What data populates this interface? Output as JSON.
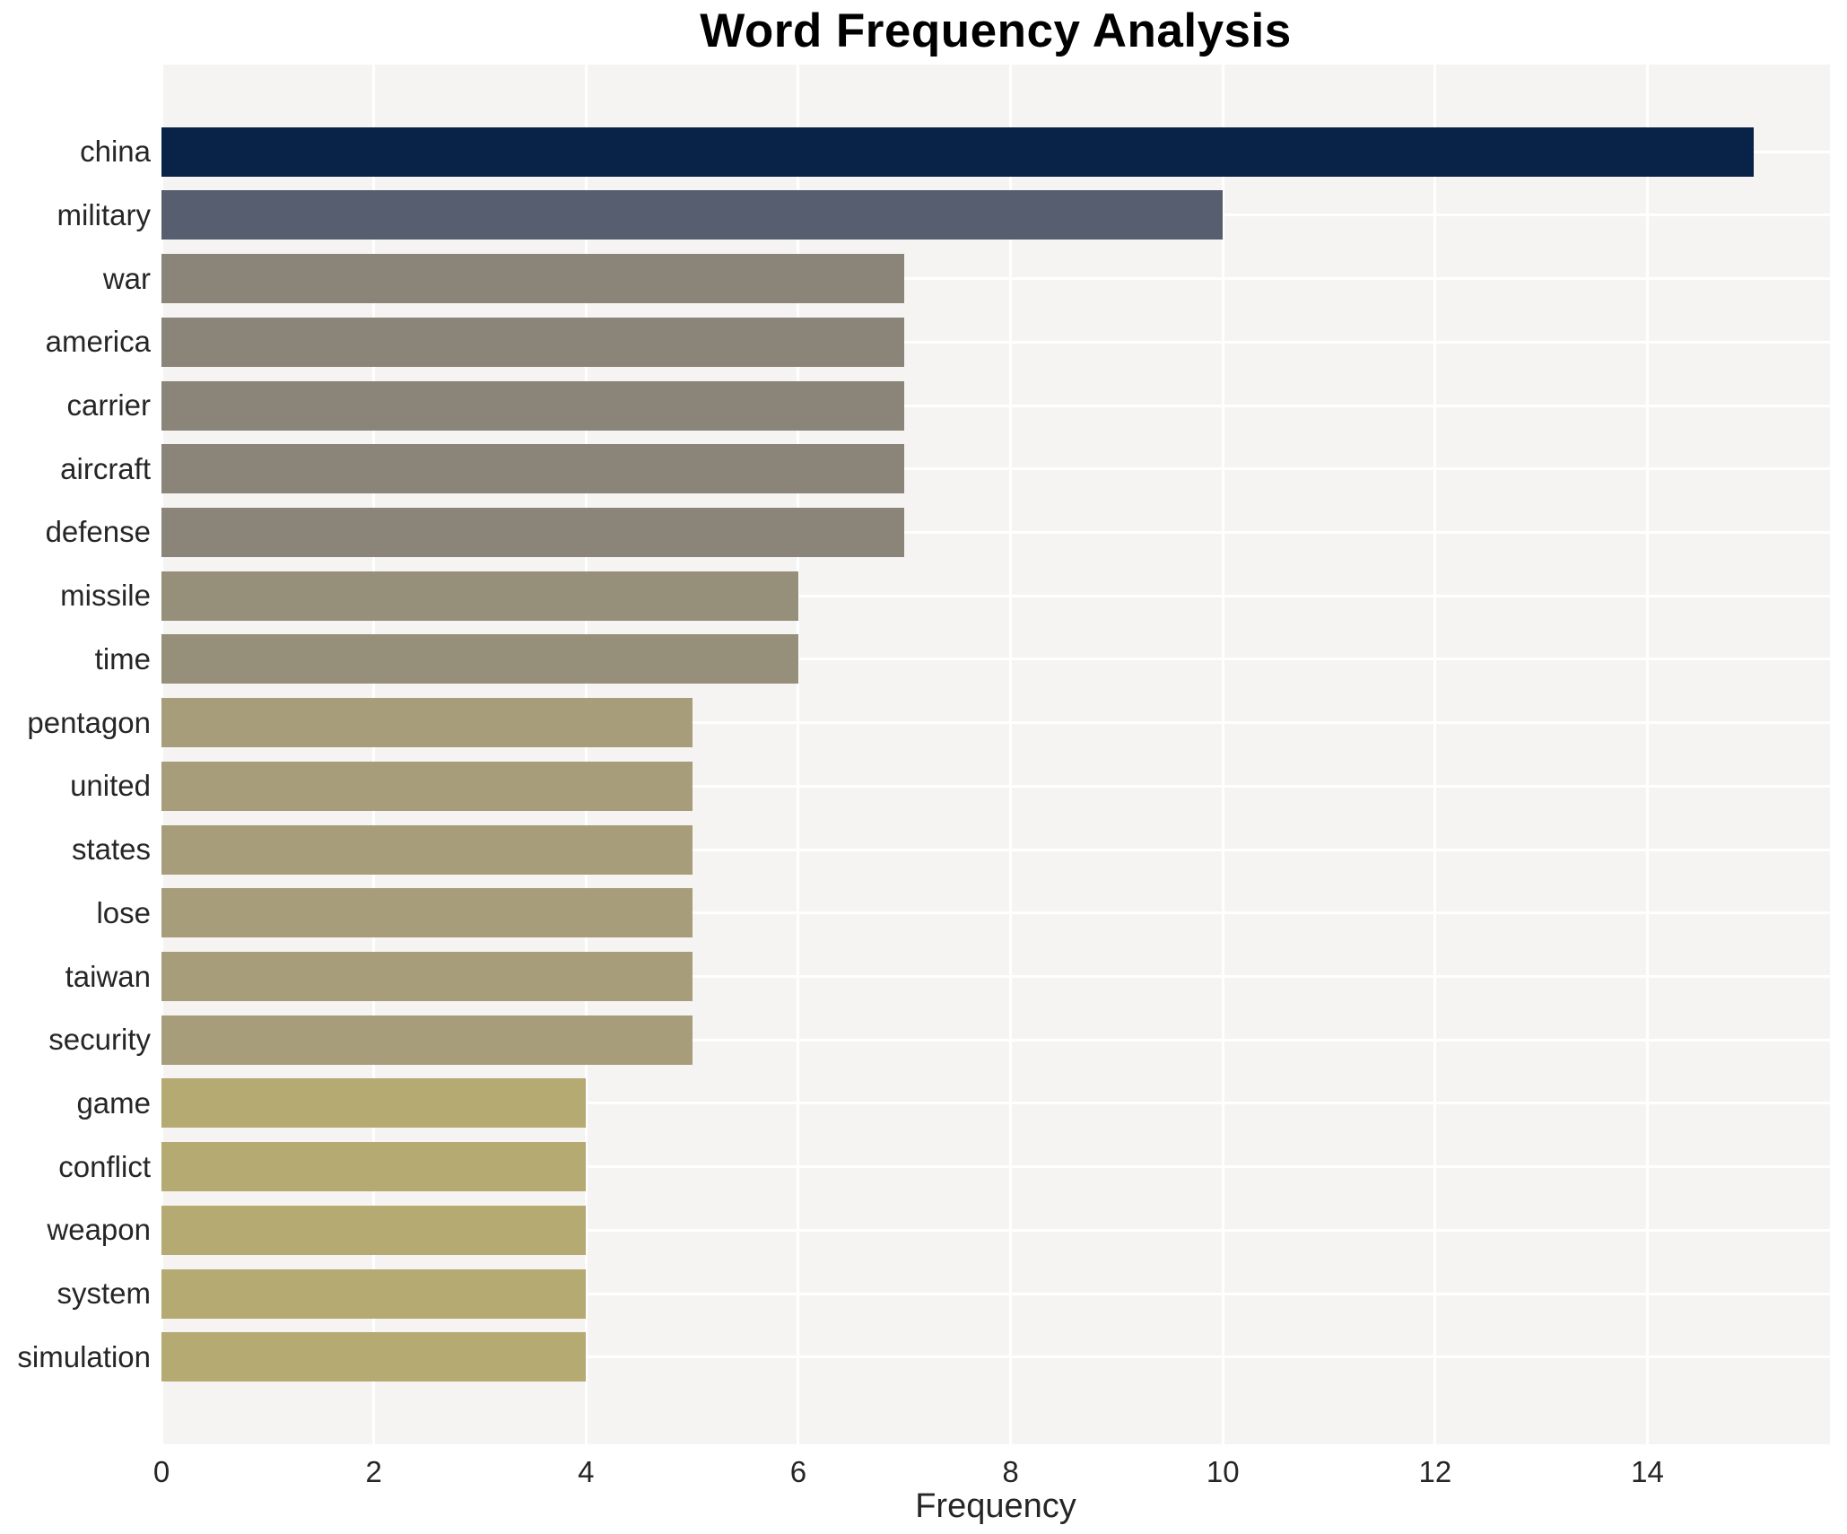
{
  "chart_data": {
    "type": "bar",
    "orientation": "horizontal",
    "title": "Word Frequency Analysis",
    "xlabel": "Frequency",
    "ylabel": "",
    "categories": [
      "china",
      "military",
      "war",
      "america",
      "carrier",
      "aircraft",
      "defense",
      "missile",
      "time",
      "pentagon",
      "united",
      "states",
      "lose",
      "taiwan",
      "security",
      "game",
      "conflict",
      "weapon",
      "system",
      "simulation"
    ],
    "values": [
      15,
      10,
      7,
      7,
      7,
      7,
      7,
      6,
      6,
      5,
      5,
      5,
      5,
      5,
      5,
      4,
      4,
      4,
      4,
      4
    ],
    "bar_colors": [
      "#082347",
      "#565e70",
      "#8a8578",
      "#8a8578",
      "#8a8578",
      "#8a8578",
      "#8a8578",
      "#968f79",
      "#968f79",
      "#a79d7a",
      "#a79d7a",
      "#a79d7a",
      "#a79d7a",
      "#a79d7a",
      "#a79d7a",
      "#b5aa71",
      "#b5aa71",
      "#b5aa71",
      "#b5aa71",
      "#b5aa71"
    ],
    "xticks": [
      0,
      2,
      4,
      6,
      8,
      10,
      12,
      14
    ],
    "xlim": [
      0,
      15.72
    ],
    "grid": true,
    "legend": false,
    "plot_background": "#f5f4f2",
    "gridline_color": "#ffffff",
    "text_color": "#262626",
    "title_color": "#000000"
  }
}
